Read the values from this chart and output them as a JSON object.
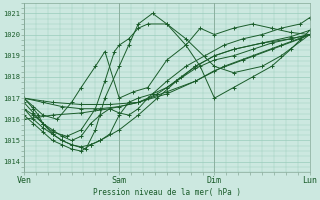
{
  "background_color": "#cce8e0",
  "grid_color": "#99ccbb",
  "line_color": "#1a5c2a",
  "ylabel_values": [
    1014,
    1015,
    1016,
    1017,
    1018,
    1019,
    1020,
    1021
  ],
  "ylim": [
    1013.5,
    1021.5
  ],
  "xlim": [
    0.0,
    3.0
  ],
  "xlabel": "Pression niveau de la mer( hPa )",
  "xtick_positions": [
    0.0,
    1.0,
    2.0,
    3.0
  ],
  "xtick_labels": [
    "Ven",
    "Sam",
    "Dim",
    "Lun"
  ],
  "vline_positions": [
    0.0,
    1.0,
    2.0,
    3.0
  ],
  "series": [
    {
      "x": [
        0.0,
        0.1,
        0.2,
        0.35,
        0.5,
        0.6,
        0.75,
        0.85,
        1.0,
        1.15,
        1.3,
        1.5,
        1.7,
        1.85,
        2.0,
        2.2,
        2.4,
        2.6,
        2.8,
        3.0
      ],
      "y": [
        1017.0,
        1016.6,
        1016.2,
        1016.0,
        1016.8,
        1017.5,
        1018.5,
        1019.2,
        1017.0,
        1017.3,
        1017.5,
        1018.8,
        1019.5,
        1020.3,
        1020.0,
        1020.3,
        1020.5,
        1020.3,
        1020.1,
        1020.0
      ]
    },
    {
      "x": [
        0.0,
        0.1,
        0.2,
        0.3,
        0.45,
        0.6,
        0.75,
        0.85,
        0.95,
        1.0,
        1.1,
        1.2,
        1.3,
        1.5,
        1.7,
        2.0,
        2.2,
        2.5,
        2.7,
        3.0
      ],
      "y": [
        1016.5,
        1016.2,
        1015.8,
        1015.4,
        1015.2,
        1015.5,
        1016.5,
        1017.8,
        1019.2,
        1019.5,
        1019.8,
        1020.3,
        1020.5,
        1020.5,
        1019.8,
        1018.5,
        1018.2,
        1018.5,
        1019.0,
        1020.0
      ]
    },
    {
      "x": [
        0.0,
        0.1,
        0.2,
        0.3,
        0.4,
        0.5,
        0.6,
        0.7,
        0.8,
        0.9,
        1.0,
        1.1,
        1.2,
        1.35,
        1.5,
        1.65,
        1.8,
        2.0,
        2.2,
        2.5,
        2.8,
        3.0
      ],
      "y": [
        1016.2,
        1015.8,
        1015.4,
        1015.0,
        1014.8,
        1014.6,
        1014.5,
        1014.8,
        1015.0,
        1015.3,
        1016.2,
        1016.8,
        1017.0,
        1017.2,
        1017.5,
        1018.0,
        1018.5,
        1019.0,
        1019.3,
        1019.6,
        1019.8,
        1020.0
      ]
    },
    {
      "x": [
        0.0,
        0.2,
        0.4,
        0.6,
        0.8,
        1.0,
        1.2,
        1.4,
        1.6,
        1.8,
        2.0,
        2.2,
        2.4,
        2.6,
        2.8,
        3.0
      ],
      "y": [
        1017.0,
        1016.8,
        1016.6,
        1016.5,
        1016.5,
        1016.6,
        1016.8,
        1017.2,
        1017.8,
        1018.4,
        1018.8,
        1019.0,
        1019.3,
        1019.6,
        1019.8,
        1020.0
      ]
    },
    {
      "x": [
        0.0,
        0.3,
        0.6,
        0.9,
        1.2,
        1.5,
        1.8,
        2.1,
        2.4,
        2.7,
        3.0
      ],
      "y": [
        1016.0,
        1016.2,
        1016.3,
        1016.5,
        1016.8,
        1017.3,
        1017.8,
        1018.5,
        1019.0,
        1019.5,
        1020.0
      ]
    },
    {
      "x": [
        0.0,
        0.1,
        0.2,
        0.3,
        0.4,
        0.5,
        0.6,
        0.7,
        0.8,
        1.0,
        1.2,
        1.4,
        1.6,
        1.8,
        2.0,
        2.2,
        2.5,
        2.8,
        3.0
      ],
      "y": [
        1016.8,
        1016.3,
        1015.8,
        1015.3,
        1015.0,
        1014.8,
        1014.7,
        1014.8,
        1015.0,
        1015.5,
        1016.2,
        1017.0,
        1017.8,
        1018.5,
        1019.0,
        1019.3,
        1019.6,
        1019.9,
        1020.2
      ]
    },
    {
      "x": [
        0.0,
        0.3,
        0.6,
        0.9,
        1.2,
        1.5,
        1.8,
        2.0,
        2.3,
        2.6,
        2.9,
        3.0
      ],
      "y": [
        1017.0,
        1016.8,
        1016.7,
        1016.7,
        1016.8,
        1017.2,
        1017.8,
        1018.3,
        1018.8,
        1019.3,
        1019.8,
        1020.0
      ]
    },
    {
      "x": [
        0.0,
        0.1,
        0.15,
        0.2,
        0.3,
        0.4,
        0.5,
        0.6,
        0.7,
        0.8,
        0.9,
        1.0,
        1.1,
        1.2,
        1.3,
        1.5,
        1.7,
        1.9,
        2.1,
        2.3,
        2.5,
        2.7,
        2.9,
        3.0
      ],
      "y": [
        1017.0,
        1016.5,
        1016.2,
        1015.8,
        1015.5,
        1015.2,
        1015.0,
        1015.2,
        1015.8,
        1016.2,
        1016.5,
        1016.3,
        1016.2,
        1016.5,
        1017.0,
        1017.8,
        1018.5,
        1019.0,
        1019.5,
        1019.8,
        1020.0,
        1020.3,
        1020.5,
        1020.8
      ]
    },
    {
      "x": [
        0.0,
        0.1,
        0.2,
        0.3,
        0.4,
        0.5,
        0.65,
        0.75,
        0.85,
        1.0,
        1.1,
        1.2,
        1.35,
        1.5,
        1.7,
        1.85,
        2.0,
        2.2,
        2.4,
        2.6,
        2.8,
        3.0
      ],
      "y": [
        1016.5,
        1016.0,
        1015.6,
        1015.3,
        1015.0,
        1014.8,
        1014.6,
        1015.5,
        1017.0,
        1018.5,
        1019.5,
        1020.5,
        1021.0,
        1020.5,
        1019.5,
        1018.5,
        1017.0,
        1017.5,
        1018.0,
        1018.5,
        1019.3,
        1020.2
      ]
    }
  ]
}
